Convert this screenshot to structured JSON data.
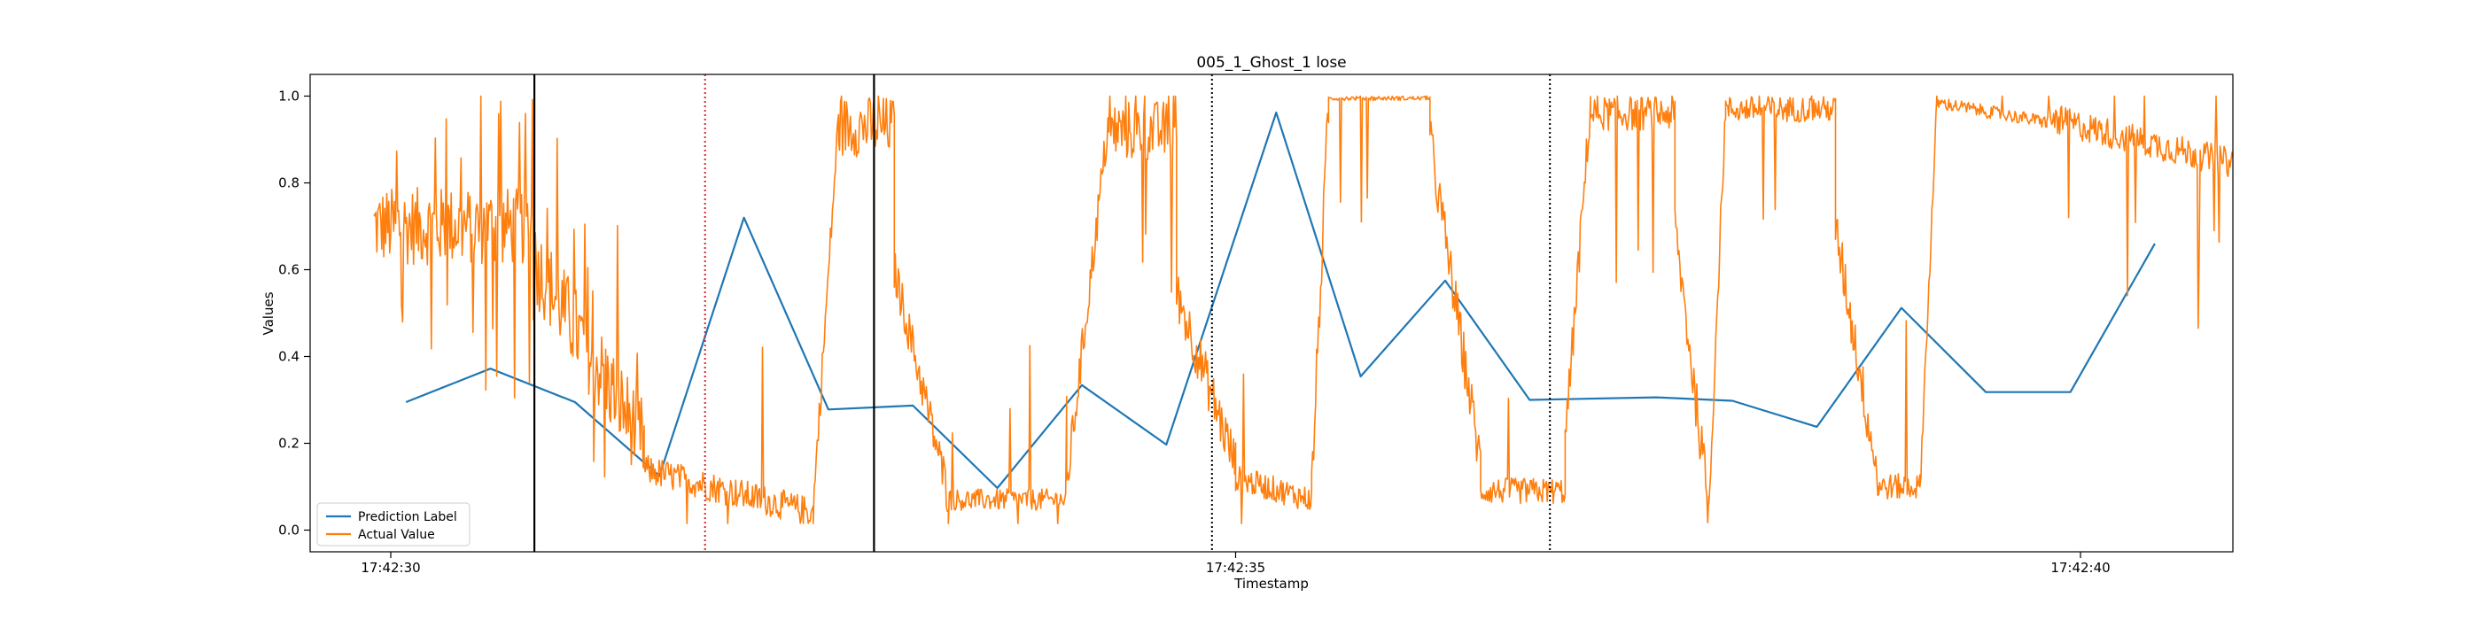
{
  "chart_data": {
    "type": "line",
    "title": "005_1_Ghost_1 lose",
    "xlabel": "Timestamp",
    "ylabel": "Values",
    "xlim": [
      -0.45,
      9.8
    ],
    "ylim": [
      -0.05,
      1.05
    ],
    "x_ticks": [
      {
        "value": 0,
        "label": "17:42:30"
      },
      {
        "value": 5,
        "label": "17:42:35"
      },
      {
        "value": 10,
        "label": "17:42:40"
      }
    ],
    "y_ticks": [
      {
        "value": 0.0,
        "label": "0.0"
      },
      {
        "value": 0.2,
        "label": "0.2"
      },
      {
        "value": 0.4,
        "label": "0.4"
      },
      {
        "value": 0.6,
        "label": "0.6"
      },
      {
        "value": 0.8,
        "label": "0.8"
      },
      {
        "value": 1.0,
        "label": "1.0"
      }
    ],
    "grid": false,
    "legend_position": "lower-left",
    "series": [
      {
        "name": "Prediction Label",
        "color": "#1f77b4",
        "points": [
          [
            0.09,
            0.295
          ],
          [
            0.59,
            0.372
          ],
          [
            1.09,
            0.295
          ],
          [
            1.59,
            0.125
          ],
          [
            2.09,
            0.72
          ],
          [
            2.59,
            0.278
          ],
          [
            3.09,
            0.287
          ],
          [
            3.59,
            0.097
          ],
          [
            4.09,
            0.334
          ],
          [
            4.59,
            0.197
          ],
          [
            5.24,
            0.962
          ],
          [
            5.74,
            0.354
          ],
          [
            6.24,
            0.575
          ],
          [
            6.74,
            0.3
          ],
          [
            7.49,
            0.306
          ],
          [
            7.94,
            0.298
          ],
          [
            8.44,
            0.238
          ],
          [
            8.94,
            0.512
          ],
          [
            9.44,
            0.318
          ],
          [
            9.94,
            0.318
          ],
          [
            10.44,
            0.66
          ]
        ]
      },
      {
        "name": "Actual Value",
        "color": "#ff7f0e",
        "segments": [
          {
            "x0": -0.1,
            "x1": 0.85,
            "base": 0.7,
            "noise": 0.09,
            "spikes": 0.14
          },
          {
            "x0": 0.85,
            "x1": 1.5,
            "base": 0.62,
            "to": 0.2,
            "noise": 0.1,
            "spikes": 0.05
          },
          {
            "x0": 1.5,
            "x1": 2.5,
            "base": 0.14,
            "to": 0.04,
            "noise": 0.035,
            "spikes": 0.02
          },
          {
            "x0": 2.5,
            "x1": 2.65,
            "base": 0.05,
            "to": 0.95,
            "noise": 0.04,
            "spikes": 0.0
          },
          {
            "x0": 2.65,
            "x1": 2.98,
            "base": 0.93,
            "noise": 0.07,
            "spikes": 0.05
          },
          {
            "x0": 2.98,
            "x1": 3.3,
            "base": 0.6,
            "to": 0.08,
            "noise": 0.05,
            "spikes": 0.0
          },
          {
            "x0": 3.3,
            "x1": 4.0,
            "base": 0.07,
            "noise": 0.025,
            "spikes": 0.03
          },
          {
            "x0": 4.0,
            "x1": 4.25,
            "base": 0.1,
            "to": 0.95,
            "noise": 0.05,
            "spikes": 0.0
          },
          {
            "x0": 4.25,
            "x1": 4.65,
            "base": 0.92,
            "noise": 0.07,
            "spikes": 0.05
          },
          {
            "x0": 4.65,
            "x1": 5.0,
            "base": 0.55,
            "to": 0.15,
            "noise": 0.06,
            "spikes": 0.02
          },
          {
            "x0": 5.0,
            "x1": 5.45,
            "base": 0.12,
            "to": 0.07,
            "noise": 0.03,
            "spikes": 0.05
          },
          {
            "x0": 5.45,
            "x1": 5.55,
            "base": 0.1,
            "to": 0.98,
            "noise": 0.06,
            "spikes": 0.0
          },
          {
            "x0": 5.55,
            "x1": 6.15,
            "base": 0.995,
            "noise": 0.005,
            "spikes": 0.02
          },
          {
            "x0": 6.15,
            "x1": 6.45,
            "base": 0.9,
            "to": 0.15,
            "noise": 0.06,
            "spikes": 0.0
          },
          {
            "x0": 6.45,
            "x1": 6.95,
            "base": 0.09,
            "noise": 0.03,
            "spikes": 0.05
          },
          {
            "x0": 6.95,
            "x1": 7.1,
            "base": 0.2,
            "to": 0.98,
            "noise": 0.05,
            "spikes": 0.0
          },
          {
            "x0": 7.1,
            "x1": 7.6,
            "base": 0.96,
            "noise": 0.04,
            "spikes": 0.06
          },
          {
            "x0": 7.6,
            "x1": 7.8,
            "base": 0.7,
            "to": 0.05,
            "noise": 0.06,
            "spikes": 0.0
          },
          {
            "x0": 7.8,
            "x1": 7.9,
            "base": 0.05,
            "to": 0.98,
            "noise": 0.04,
            "spikes": 0.0
          },
          {
            "x0": 7.9,
            "x1": 8.55,
            "base": 0.97,
            "noise": 0.03,
            "spikes": 0.05
          },
          {
            "x0": 8.55,
            "x1": 8.8,
            "base": 0.7,
            "to": 0.12,
            "noise": 0.06,
            "spikes": 0.0
          },
          {
            "x0": 8.8,
            "x1": 9.05,
            "base": 0.1,
            "noise": 0.03,
            "spikes": 0.03
          },
          {
            "x0": 9.05,
            "x1": 9.15,
            "base": 0.1,
            "to": 0.98,
            "noise": 0.03,
            "spikes": 0.0
          },
          {
            "x0": 9.15,
            "x1": 9.8,
            "base": 0.985,
            "to": 0.94,
            "noise": 0.015,
            "spikes": 0.02
          },
          {
            "x0": 9.8,
            "x1": 10.95,
            "base": 0.95,
            "to": 0.84,
            "noise": 0.035,
            "spikes": 0.05
          }
        ]
      }
    ],
    "vlines": [
      {
        "x": 0.85,
        "color": "#000000",
        "style": "solid"
      },
      {
        "x": 1.86,
        "color": "#d62728",
        "style": "dotted"
      },
      {
        "x": 2.86,
        "color": "#000000",
        "style": "solid"
      },
      {
        "x": 4.86,
        "color": "#000000",
        "style": "dotted"
      },
      {
        "x": 6.86,
        "color": "#000000",
        "style": "dotted"
      }
    ]
  }
}
